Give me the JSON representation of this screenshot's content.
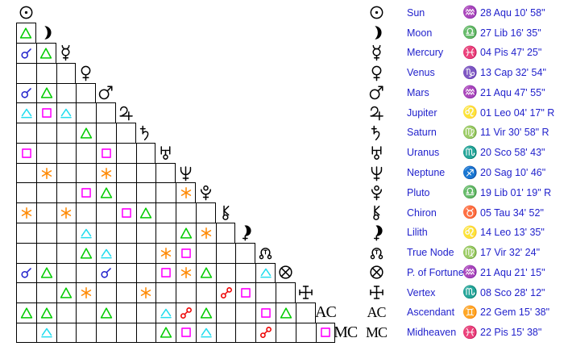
{
  "colors": {
    "text_blue": "#2222CC",
    "glyph_black": "#000000",
    "grid_line": "#000000",
    "background": "#FFFFFF",
    "conjunction": "#2222CC",
    "opposition": "#EE0000",
    "trine": "#00CC00",
    "square": "#FF00FF",
    "sextile": "#FF8800",
    "quincunx": "#22DDEE"
  },
  "aspect_grid": {
    "rows": [
      {
        "id": "sun",
        "aspects": []
      },
      {
        "id": "moon",
        "aspects": [
          "trine"
        ]
      },
      {
        "id": "mercury",
        "aspects": [
          "conjunction",
          "trine"
        ]
      },
      {
        "id": "venus",
        "aspects": [
          null,
          null,
          null
        ]
      },
      {
        "id": "mars",
        "aspects": [
          "conjunction",
          "trine",
          null,
          null
        ]
      },
      {
        "id": "jupiter",
        "aspects": [
          "quincunx",
          "square",
          "quincunx",
          null,
          null
        ]
      },
      {
        "id": "saturn",
        "aspects": [
          null,
          null,
          null,
          "trine",
          null,
          null
        ]
      },
      {
        "id": "uranus",
        "aspects": [
          "square",
          null,
          null,
          null,
          "square",
          null,
          null
        ]
      },
      {
        "id": "neptune",
        "aspects": [
          null,
          "sextile",
          null,
          null,
          "sextile",
          null,
          null,
          null
        ]
      },
      {
        "id": "pluto",
        "aspects": [
          null,
          null,
          null,
          "square",
          "trine",
          null,
          null,
          null,
          "sextile"
        ]
      },
      {
        "id": "chiron",
        "aspects": [
          "sextile",
          null,
          "sextile",
          null,
          null,
          "square",
          "trine",
          null,
          null,
          null
        ]
      },
      {
        "id": "lilith",
        "aspects": [
          null,
          null,
          null,
          "quincunx",
          null,
          null,
          null,
          null,
          "trine",
          "sextile",
          null
        ]
      },
      {
        "id": "truenode",
        "aspects": [
          null,
          null,
          null,
          "trine",
          "quincunx",
          null,
          null,
          "sextile",
          "square",
          null,
          null,
          null
        ]
      },
      {
        "id": "fortune",
        "aspects": [
          "conjunction",
          "trine",
          null,
          null,
          "conjunction",
          null,
          null,
          "square",
          "sextile",
          "trine",
          null,
          null,
          "quincunx"
        ]
      },
      {
        "id": "vertex",
        "aspects": [
          null,
          null,
          "trine",
          "sextile",
          null,
          null,
          "sextile",
          null,
          null,
          null,
          "opposition",
          "square",
          null,
          null
        ]
      },
      {
        "id": "asc",
        "aspects": [
          "trine",
          "trine",
          null,
          null,
          "trine",
          null,
          null,
          "quincunx",
          "opposition",
          "trine",
          null,
          null,
          "square",
          "trine",
          null
        ]
      },
      {
        "id": "mc",
        "aspects": [
          null,
          "quincunx",
          null,
          null,
          null,
          null,
          null,
          "trine",
          "square",
          "quincunx",
          null,
          null,
          "opposition",
          null,
          null,
          "square"
        ]
      }
    ]
  },
  "positions_table": {
    "rows": [
      {
        "id": "sun",
        "name": "Sun",
        "sign": "Aquarius",
        "sign_glyph": "♒",
        "position": "28 Aqu 10' 58\""
      },
      {
        "id": "moon",
        "name": "Moon",
        "sign": "Libra",
        "sign_glyph": "♎",
        "position": "27 Lib 16' 35\""
      },
      {
        "id": "mercury",
        "name": "Mercury",
        "sign": "Pisces",
        "sign_glyph": "♓",
        "position": "04 Pis 47' 25\""
      },
      {
        "id": "venus",
        "name": "Venus",
        "sign": "Capricorn",
        "sign_glyph": "♑",
        "position": "13 Cap 32' 54\""
      },
      {
        "id": "mars",
        "name": "Mars",
        "sign": "Aquarius",
        "sign_glyph": "♒",
        "position": "21 Aqu 47' 55\""
      },
      {
        "id": "jupiter",
        "name": "Jupiter",
        "sign": "Leo",
        "sign_glyph": "♌",
        "position": "01 Leo 04' 17\" R"
      },
      {
        "id": "saturn",
        "name": "Saturn",
        "sign": "Virgo",
        "sign_glyph": "♍",
        "position": "11 Vir 30' 58\" R"
      },
      {
        "id": "uranus",
        "name": "Uranus",
        "sign": "Scorpio",
        "sign_glyph": "♏",
        "position": "20 Sco 58' 43\""
      },
      {
        "id": "neptune",
        "name": "Neptune",
        "sign": "Sagittarius",
        "sign_glyph": "♐",
        "position": "20 Sag 10' 46\""
      },
      {
        "id": "pluto",
        "name": "Pluto",
        "sign": "Libra",
        "sign_glyph": "♎",
        "position": "19 Lib 01' 19\" R"
      },
      {
        "id": "chiron",
        "name": "Chiron",
        "sign": "Taurus",
        "sign_glyph": "♉",
        "position": "05 Tau 34' 52\""
      },
      {
        "id": "lilith",
        "name": "Lilith",
        "sign": "Leo",
        "sign_glyph": "♌",
        "position": "14 Leo 13' 35\""
      },
      {
        "id": "truenode",
        "name": "True Node",
        "sign": "Virgo",
        "sign_glyph": "♍",
        "position": "17 Vir 32' 24\""
      },
      {
        "id": "fortune",
        "name": "P. of Fortune",
        "sign": "Aquarius",
        "sign_glyph": "♒",
        "position": "21 Aqu 21' 15\""
      },
      {
        "id": "vertex",
        "name": "Vertex",
        "sign": "Scorpio",
        "sign_glyph": "♏",
        "position": "08 Sco 28' 12\""
      },
      {
        "id": "asc",
        "name": "Ascendant",
        "sign": "Gemini",
        "sign_glyph": "♊",
        "position": "22 Gem 15' 38\""
      },
      {
        "id": "mc",
        "name": "Midheaven",
        "sign": "Pisces",
        "sign_glyph": "♓",
        "position": "22 Pis 15' 38\""
      }
    ]
  },
  "labels": {
    "ascendant_short": "AC",
    "midheaven_short": "MC"
  }
}
